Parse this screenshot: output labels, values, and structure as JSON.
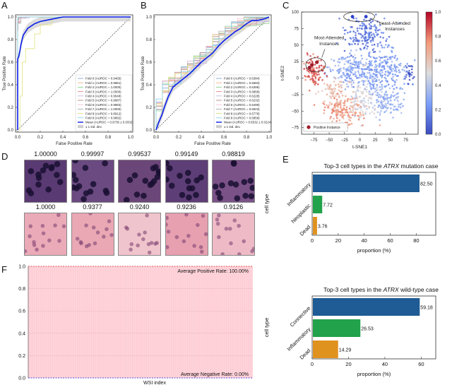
{
  "panels": {
    "A": {
      "letter": "A"
    },
    "B": {
      "letter": "B"
    },
    "C": {
      "letter": "C"
    },
    "D": {
      "letter": "D"
    },
    "E": {
      "letter": "E"
    },
    "F": {
      "letter": "F"
    }
  },
  "chart_data": [
    {
      "id": "A",
      "type": "line",
      "title": "",
      "xlabel": "False Positive Rate",
      "ylabel": "True Positive Rate",
      "xlim": [
        0,
        1
      ],
      "ylim": [
        0,
        1
      ],
      "xticks": [
        "0.0",
        "0.2",
        "0.4",
        "0.6",
        "0.8",
        "1.0"
      ],
      "yticks": [
        "0.0",
        "0.2",
        "0.4",
        "0.6",
        "0.8",
        "1.0"
      ],
      "legend_position": "lower-right",
      "folds": [
        {
          "name": "Fold 0 (AUROC = 0.9465)",
          "color": "#7fa7d4"
        },
        {
          "name": "Fold 1 (AUROC = 0.9861)",
          "color": "#f5b08a"
        },
        {
          "name": "Fold 2 (AUROC = 1.0000)",
          "color": "#8ccf8a"
        },
        {
          "name": "Fold 3 (AUROC = 1.0000)",
          "color": "#e8848a"
        },
        {
          "name": "Fold 4 (AUROC = 0.9548)",
          "color": "#c6b8e0"
        },
        {
          "name": "Fold 5 (AUROC = 0.9687)",
          "color": "#b58a86"
        },
        {
          "name": "Fold 6 (AUROC = 0.9983)",
          "color": "#f4c0dc"
        },
        {
          "name": "Fold 7 (AUROC = 1.0000)",
          "color": "#aaaaaa"
        },
        {
          "name": "Fold 8 (AUROC = 0.8912)",
          "color": "#e0e07a"
        },
        {
          "name": "Fold 9 (AUROC = 0.9892)",
          "color": "#87d4e6"
        }
      ],
      "mean": {
        "name": "Mean (AUROC = 0.9735 ± 0.0332)",
        "color": "#0a1fe8"
      },
      "std_band": {
        "name": "± 1 std. dev.",
        "color": "#cccccc"
      },
      "mean_curve": [
        [
          0,
          0
        ],
        [
          0,
          0.63
        ],
        [
          0.01,
          0.65
        ],
        [
          0.02,
          0.7
        ],
        [
          0.03,
          0.76
        ],
        [
          0.04,
          0.8
        ],
        [
          0.05,
          0.84
        ],
        [
          0.07,
          0.87
        ],
        [
          0.09,
          0.9
        ],
        [
          0.12,
          0.92
        ],
        [
          0.15,
          0.94
        ],
        [
          0.2,
          0.96
        ],
        [
          0.3,
          0.98
        ],
        [
          0.4,
          1.0
        ],
        [
          1,
          1
        ]
      ],
      "fold8_curve": [
        [
          0,
          0
        ],
        [
          0.02,
          0
        ],
        [
          0.02,
          0.3
        ],
        [
          0.04,
          0.3
        ],
        [
          0.04,
          0.6
        ],
        [
          0.07,
          0.6
        ],
        [
          0.07,
          0.72
        ],
        [
          0.15,
          0.72
        ],
        [
          0.15,
          0.85
        ],
        [
          0.2,
          0.85
        ],
        [
          0.2,
          0.93
        ],
        [
          0.3,
          0.93
        ],
        [
          0.3,
          1.0
        ],
        [
          1,
          1
        ]
      ]
    },
    {
      "id": "B",
      "type": "line",
      "title": "",
      "xlabel": "False Positive Rate",
      "ylabel": "True Positive Rate",
      "xlim": [
        0,
        1
      ],
      "ylim": [
        0,
        1
      ],
      "xticks": [
        "0.0",
        "0.2",
        "0.4",
        "0.6",
        "0.8",
        "1.0"
      ],
      "yticks": [
        "0.0",
        "0.2",
        "0.4",
        "0.6",
        "0.8",
        "1.0"
      ],
      "legend_position": "lower-right",
      "folds": [
        {
          "name": "Fold 0 (AUROC = 0.6384)",
          "color": "#7fa7d4"
        },
        {
          "name": "Fold 1 (AUROC = 0.6583)",
          "color": "#f5b08a"
        },
        {
          "name": "Fold 2 (AUROC = 0.6396)",
          "color": "#8ccf8a"
        },
        {
          "name": "Fold 3 (AUROC = 0.6858)",
          "color": "#e8848a"
        },
        {
          "name": "Fold 4 (AUROC = 0.6228)",
          "color": "#c6b8e0"
        },
        {
          "name": "Fold 5 (AUROC = 0.6232)",
          "color": "#b58a86"
        },
        {
          "name": "Fold 6 (AUROC = 0.6499)",
          "color": "#f4c0dc"
        },
        {
          "name": "Fold 7 (AUROC = 0.6503)",
          "color": "#aaaaaa"
        },
        {
          "name": "Fold 8 (AUROC = 0.6778)",
          "color": "#e0e07a"
        },
        {
          "name": "Fold 9 (AUROC = 0.6858)",
          "color": "#87d4e6"
        }
      ],
      "mean": {
        "name": "Mean (AUROC = 0.6532 ± 0.0224)",
        "color": "#0a1fe8"
      },
      "std_band": {
        "name": "± 1 std. dev.",
        "color": "#cccccc"
      },
      "mean_curve": [
        [
          0,
          0
        ],
        [
          0.02,
          0.06
        ],
        [
          0.05,
          0.13
        ],
        [
          0.08,
          0.22
        ],
        [
          0.11,
          0.3
        ],
        [
          0.15,
          0.38
        ],
        [
          0.2,
          0.42
        ],
        [
          0.25,
          0.46
        ],
        [
          0.3,
          0.5
        ],
        [
          0.35,
          0.55
        ],
        [
          0.4,
          0.6
        ],
        [
          0.45,
          0.64
        ],
        [
          0.5,
          0.68
        ],
        [
          0.55,
          0.74
        ],
        [
          0.6,
          0.79
        ],
        [
          0.65,
          0.83
        ],
        [
          0.7,
          0.87
        ],
        [
          0.75,
          0.9
        ],
        [
          0.8,
          0.94
        ],
        [
          0.85,
          0.97
        ],
        [
          0.9,
          0.97
        ],
        [
          0.95,
          0.98
        ],
        [
          1,
          1
        ]
      ]
    },
    {
      "id": "C",
      "type": "scatter",
      "title": "",
      "xlabel": "t-SNE1",
      "ylabel": "t-SNE2",
      "xlim": [
        -95,
        95
      ],
      "ylim": [
        -85,
        100
      ],
      "xticks": [
        "−75",
        "−50",
        "−25",
        "0",
        "25",
        "50",
        "75"
      ],
      "yticks": [
        "100",
        "75",
        "50",
        "25",
        "0",
        "−25",
        "−50",
        "−75"
      ],
      "colorbar": {
        "min": 0.0,
        "max": 1.0,
        "ticks": [
          "1.0",
          "0.8",
          "0.6",
          "0.4",
          "0.2",
          "0.0"
        ],
        "colormap": "coolwarm"
      },
      "annotations": [
        {
          "text_line1": "Most-Attended",
          "text_line2": "Instances",
          "target": [
            -75,
            20
          ]
        },
        {
          "text_line1": "Least-Attended",
          "text_line2": "Instances",
          "target": [
            0,
            93
          ]
        }
      ],
      "legend": {
        "label": "Positive Instance",
        "color": "#a01c2c",
        "position": "lower-left"
      },
      "clusters": [
        {
          "cx": 10,
          "cy": 70,
          "sx": 18,
          "sy": 16,
          "n": 180,
          "val": 0.12
        },
        {
          "cx": 35,
          "cy": 10,
          "sx": 22,
          "sy": 18,
          "n": 260,
          "val": 0.25
        },
        {
          "cx": -15,
          "cy": 10,
          "sx": 18,
          "sy": 12,
          "n": 150,
          "val": 0.3
        },
        {
          "cx": 45,
          "cy": -35,
          "sx": 12,
          "sy": 12,
          "n": 120,
          "val": 0.33
        },
        {
          "cx": 80,
          "cy": 8,
          "sx": 4,
          "sy": 6,
          "n": 30,
          "val": 0.05
        },
        {
          "cx": -75,
          "cy": 10,
          "sx": 8,
          "sy": 12,
          "n": 110,
          "val": 0.85
        },
        {
          "cx": -40,
          "cy": -18,
          "sx": 10,
          "sy": 10,
          "n": 70,
          "val": 0.62
        },
        {
          "cx": -25,
          "cy": -50,
          "sx": 16,
          "sy": 10,
          "n": 170,
          "val": 0.72
        },
        {
          "cx": 5,
          "cy": -30,
          "sx": 10,
          "sy": 18,
          "n": 110,
          "val": 0.48
        }
      ]
    },
    {
      "id": "E1",
      "type": "bar",
      "orientation": "horizontal",
      "title_pre": "Top-3 cell types in the ",
      "title_em": "ATRX",
      "title_post": " mutation case",
      "xlabel": "proportion (%)",
      "ylabel": "cell type",
      "xlim": [
        0,
        95
      ],
      "xticks": [
        0,
        20,
        40,
        60,
        80
      ],
      "categories": [
        "Inflammatory",
        "Neoplastic",
        "Dead"
      ],
      "values": [
        82.5,
        7.72,
        3.76
      ],
      "labels": [
        "82.50",
        "7.72",
        "3.76"
      ],
      "colors": [
        "#1f5b94",
        "#22a24a",
        "#e0921f"
      ]
    },
    {
      "id": "E2",
      "type": "bar",
      "orientation": "horizontal",
      "title_pre": "Top-3 cell types in the ",
      "title_em": "ATRX",
      "title_post": " wild-type case",
      "xlabel": "proportion (%)",
      "ylabel": "cell type",
      "xlim": [
        0,
        68
      ],
      "xticks": [
        0,
        20,
        40,
        60
      ],
      "categories": [
        "Connective",
        "Inflammatory",
        "Dead"
      ],
      "values": [
        59.18,
        26.53,
        14.29
      ],
      "labels": [
        "59.18",
        "26.53",
        "14.29"
      ],
      "colors": [
        "#1f5b94",
        "#22a24a",
        "#e0921f"
      ]
    },
    {
      "id": "F",
      "type": "area",
      "xlabel": "WSI index",
      "ylabel": "",
      "ylim": [
        0,
        1
      ],
      "yticks": [
        "0.0",
        "0.2",
        "0.4",
        "0.6",
        "0.8",
        "1.0"
      ],
      "positive_rate": 1.0,
      "negative_rate": 0.0,
      "positive_label": "Average Positive Rate: 100.00%",
      "negative_label": "Average Negative Rate: 0.00%",
      "fill_color": "#ffd3da",
      "positive_line_color": "#e02020",
      "negative_line_color": "#2020d0"
    }
  ],
  "tiles": {
    "top_row": [
      "1.00000",
      "0.99997",
      "0.99537",
      "0.99149",
      "0.98819"
    ],
    "bottom_row": [
      "1.0000",
      "0.9377",
      "0.9240",
      "0.9236",
      "0.9126"
    ],
    "top_colors": [
      "#5a3a72",
      "#6a4a80",
      "#6b4678",
      "#5e3e76",
      "#7a5288"
    ],
    "bottom_colors": [
      "#eaaab8",
      "#e9a8b4",
      "#f0c4cc",
      "#e6a0b0",
      "#edbac6"
    ]
  }
}
